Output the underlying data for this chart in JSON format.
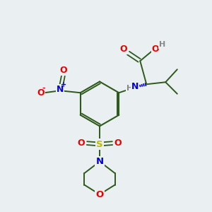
{
  "bg_color": "#eaeff2",
  "bond_color": "#2d5a1b",
  "N_color": "#0000ee",
  "O_color": "#ee0000",
  "S_color": "#bbbb00",
  "H_color": "#888888",
  "figsize": [
    3.0,
    3.0
  ],
  "dpi": 100,
  "xlim": [
    0,
    10
  ],
  "ylim": [
    0,
    10
  ]
}
